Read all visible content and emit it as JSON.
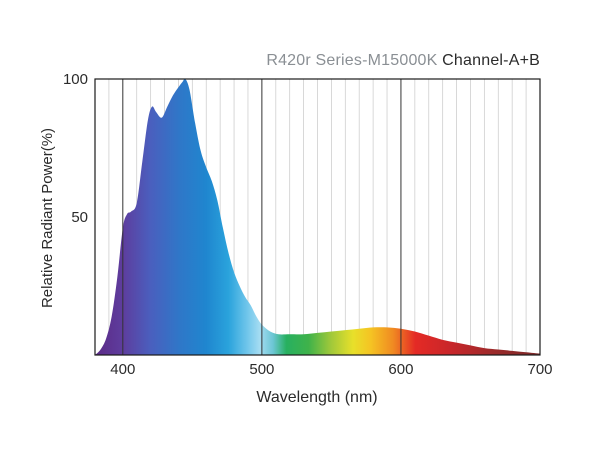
{
  "chart_data": {
    "type": "area",
    "title_prefix": "R420r Series-M15000K",
    "title_suffix": "Channel-A+B",
    "xlabel": "Wavelength (nm)",
    "ylabel": "Relative Radiant Power(%)",
    "xlim": [
      380,
      700
    ],
    "ylim": [
      0,
      100
    ],
    "xticks": [
      "400",
      "500",
      "600",
      "700"
    ],
    "yticks": [
      "100",
      "50"
    ],
    "grid": "vertical every 10 nm, major every 100 nm",
    "fill": "visible-spectrum gradient by wavelength",
    "series": [
      {
        "x": [
          380,
          384,
          388,
          392,
          396,
          400,
          403,
          406,
          410,
          414,
          418,
          421,
          424,
          428,
          432,
          436,
          440,
          443,
          445,
          448,
          452,
          456,
          460,
          464,
          468,
          472,
          476,
          480,
          484,
          488,
          492,
          496,
          500,
          506,
          512,
          520,
          530,
          540,
          550,
          560,
          570,
          580,
          590,
          600,
          610,
          620,
          630,
          640,
          650,
          660,
          670,
          680,
          690,
          700
        ],
        "values": [
          0,
          2,
          6,
          14,
          28,
          46,
          51,
          52,
          55,
          70,
          85,
          90,
          88,
          86,
          90,
          94,
          97,
          99,
          100,
          96,
          84,
          74,
          68,
          63,
          56,
          46,
          37,
          30,
          25,
          21,
          18,
          14,
          11,
          8.5,
          7.5,
          7.5,
          7.5,
          8,
          8.5,
          9,
          9.5,
          10,
          10,
          9.5,
          8.5,
          7,
          5.5,
          4.5,
          3.5,
          2.5,
          2,
          1.5,
          1,
          0.5
        ]
      }
    ]
  },
  "colors": {
    "frame": "#1a1a1a",
    "grid_major": "#333333",
    "grid_minor": "#cfcfcf",
    "text": "#2b2b2b",
    "title_gray": "#8a8f94"
  }
}
